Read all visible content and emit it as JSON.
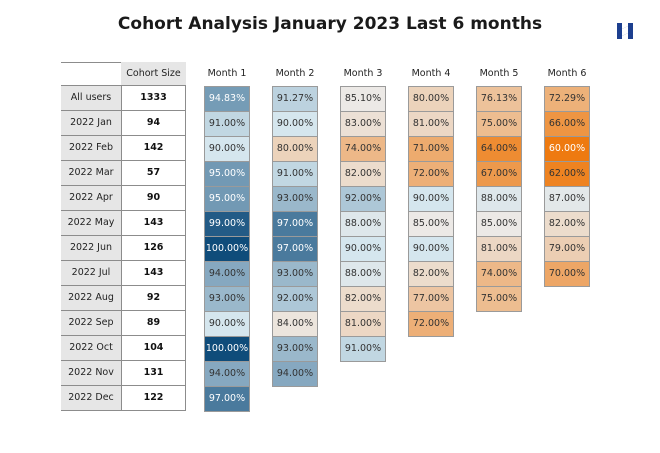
{
  "chart_data": {
    "type": "heatmap",
    "title": "Cohort Analysis January 2023 Last 6 months",
    "row_header_label": "",
    "size_header_label": "Cohort Size",
    "columns": [
      "Month 1",
      "Month 2",
      "Month 3",
      "Month 4",
      "Month 5",
      "Month 6"
    ],
    "rows": [
      {
        "label": "All users",
        "size": "1333",
        "values": [
          "94.83%",
          "91.27%",
          "85.10%",
          "80.00%",
          "76.13%",
          "72.29%"
        ]
      },
      {
        "label": "2022 Jan",
        "size": "94",
        "values": [
          "91.00%",
          "90.00%",
          "83.00%",
          "81.00%",
          "75.00%",
          "66.00%"
        ]
      },
      {
        "label": "2022 Feb",
        "size": "142",
        "values": [
          "90.00%",
          "80.00%",
          "74.00%",
          "71.00%",
          "64.00%",
          "60.00%"
        ]
      },
      {
        "label": "2022 Mar",
        "size": "57",
        "values": [
          "95.00%",
          "91.00%",
          "82.00%",
          "72.00%",
          "67.00%",
          "62.00%"
        ]
      },
      {
        "label": "2022 Apr",
        "size": "90",
        "values": [
          "95.00%",
          "93.00%",
          "92.00%",
          "90.00%",
          "88.00%",
          "87.00%"
        ]
      },
      {
        "label": "2022 May",
        "size": "143",
        "values": [
          "99.00%",
          "97.00%",
          "88.00%",
          "85.00%",
          "85.00%",
          "82.00%"
        ]
      },
      {
        "label": "2022 Jun",
        "size": "126",
        "values": [
          "100.00%",
          "97.00%",
          "90.00%",
          "90.00%",
          "81.00%",
          "79.00%"
        ]
      },
      {
        "label": "2022 Jul",
        "size": "143",
        "values": [
          "94.00%",
          "93.00%",
          "88.00%",
          "82.00%",
          "74.00%",
          "70.00%"
        ]
      },
      {
        "label": "2022 Aug",
        "size": "92",
        "values": [
          "93.00%",
          "92.00%",
          "82.00%",
          "77.00%",
          "75.00%"
        ]
      },
      {
        "label": "2022 Sep",
        "size": "89",
        "values": [
          "90.00%",
          "84.00%",
          "81.00%",
          "72.00%"
        ]
      },
      {
        "label": "2022 Oct",
        "size": "104",
        "values": [
          "100.00%",
          "93.00%",
          "91.00%"
        ]
      },
      {
        "label": "2022 Nov",
        "size": "131",
        "values": [
          "94.00%",
          "94.00%"
        ]
      },
      {
        "label": "2022 Dec",
        "size": "122",
        "values": [
          "97.00%"
        ]
      }
    ],
    "colors": {
      "high": "#0f4c7a",
      "mid": "#d5e6ee",
      "neutral": "#ece9e6",
      "low": "#ee7a10",
      "label_bg": "#e6e6e6",
      "border": "#8c8c8c"
    },
    "logo_icon": "stylized-h-logo-icon"
  }
}
